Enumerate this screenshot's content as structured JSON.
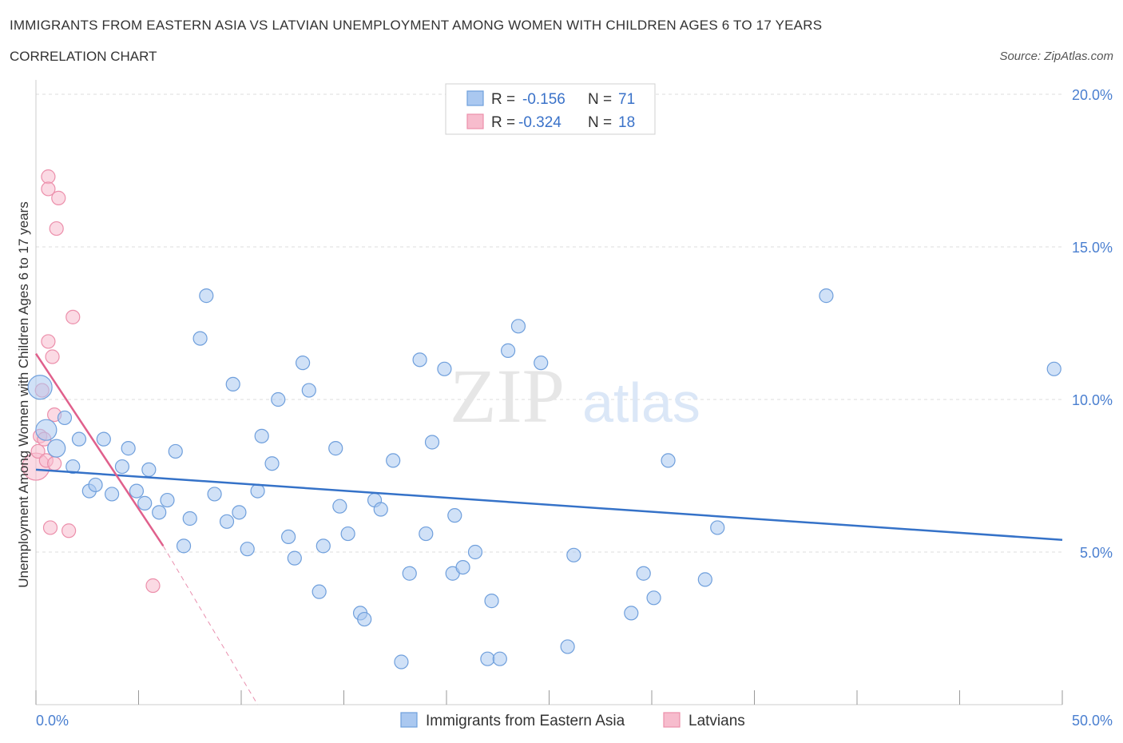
{
  "title": "IMMIGRANTS FROM EASTERN ASIA VS LATVIAN UNEMPLOYMENT AMONG WOMEN WITH CHILDREN AGES 6 TO 17 YEARS",
  "subtitle": "CORRELATION CHART",
  "source": "Source: ZipAtlas.com",
  "watermark": {
    "zip": "ZIP",
    "atlas": "atlas"
  },
  "legend": {
    "r_label": "R =",
    "n_label": "N =",
    "series1": {
      "r": "-0.156",
      "n": "71"
    },
    "series2": {
      "r": "-0.324",
      "n": "18"
    }
  },
  "colors": {
    "blue_fill": "#aac8f0",
    "blue_stroke": "#6f9fdc",
    "blue_line": "#3572c8",
    "pink_fill": "#f7bccd",
    "pink_stroke": "#ec8fab",
    "pink_line": "#e0608c",
    "grid": "#dcdcdc",
    "tick_label": "#4a7fd0"
  },
  "chart_data": {
    "type": "scatter",
    "ylabel": "Unemployment Among Women with Children Ages 6 to 17 years",
    "xlim": [
      0,
      50
    ],
    "ylim": [
      0,
      20
    ],
    "x_tick_labels": [
      "0.0%",
      "50.0%"
    ],
    "y_ticks": [
      5,
      10,
      15,
      20
    ],
    "y_tick_labels": [
      "5.0%",
      "10.0%",
      "15.0%",
      "20.0%"
    ],
    "grid": "horizontal dashed",
    "legend_placement": "top-center",
    "series": [
      {
        "name": "Immigrants from Eastern Asia",
        "color": "#aac8f0",
        "trend": {
          "x": [
            0,
            50
          ],
          "y": [
            7.7,
            5.4
          ]
        },
        "points": [
          [
            0.2,
            10.4
          ],
          [
            0.5,
            9.0
          ],
          [
            1.0,
            8.4
          ],
          [
            1.4,
            9.4
          ],
          [
            1.8,
            7.8
          ],
          [
            2.1,
            8.7
          ],
          [
            2.6,
            7.0
          ],
          [
            2.9,
            7.2
          ],
          [
            3.3,
            8.7
          ],
          [
            3.7,
            6.9
          ],
          [
            4.2,
            7.8
          ],
          [
            4.5,
            8.4
          ],
          [
            4.9,
            7.0
          ],
          [
            5.3,
            6.6
          ],
          [
            5.5,
            7.7
          ],
          [
            6.0,
            6.3
          ],
          [
            6.4,
            6.7
          ],
          [
            6.8,
            8.3
          ],
          [
            7.2,
            5.2
          ],
          [
            7.5,
            6.1
          ],
          [
            8.0,
            12.0
          ],
          [
            8.3,
            13.4
          ],
          [
            8.7,
            6.9
          ],
          [
            9.3,
            6.0
          ],
          [
            9.6,
            10.5
          ],
          [
            9.9,
            6.3
          ],
          [
            10.3,
            5.1
          ],
          [
            10.8,
            7.0
          ],
          [
            11.0,
            8.8
          ],
          [
            11.5,
            7.9
          ],
          [
            11.8,
            10.0
          ],
          [
            12.3,
            5.5
          ],
          [
            12.6,
            4.8
          ],
          [
            13.0,
            11.2
          ],
          [
            13.3,
            10.3
          ],
          [
            13.8,
            3.7
          ],
          [
            14.0,
            5.2
          ],
          [
            14.6,
            8.4
          ],
          [
            14.8,
            6.5
          ],
          [
            15.2,
            5.6
          ],
          [
            15.8,
            3.0
          ],
          [
            16.0,
            2.8
          ],
          [
            16.5,
            6.7
          ],
          [
            16.8,
            6.4
          ],
          [
            17.4,
            8.0
          ],
          [
            17.8,
            1.4
          ],
          [
            18.2,
            4.3
          ],
          [
            18.7,
            11.3
          ],
          [
            19.0,
            5.6
          ],
          [
            19.3,
            8.6
          ],
          [
            19.9,
            11.0
          ],
          [
            20.3,
            4.3
          ],
          [
            20.4,
            6.2
          ],
          [
            20.8,
            4.5
          ],
          [
            21.4,
            5.0
          ],
          [
            22.0,
            1.5
          ],
          [
            22.2,
            3.4
          ],
          [
            22.6,
            1.5
          ],
          [
            23.0,
            11.6
          ],
          [
            23.5,
            12.4
          ],
          [
            24.6,
            11.2
          ],
          [
            25.9,
            1.9
          ],
          [
            26.2,
            4.9
          ],
          [
            29.0,
            3.0
          ],
          [
            29.6,
            4.3
          ],
          [
            30.1,
            3.5
          ],
          [
            30.8,
            8.0
          ],
          [
            32.6,
            4.1
          ],
          [
            33.2,
            5.8
          ],
          [
            38.5,
            13.4
          ],
          [
            49.6,
            11.0
          ]
        ]
      },
      {
        "name": "Latvians",
        "color": "#f7bccd",
        "trend": {
          "x": [
            0,
            6.2
          ],
          "y": [
            11.5,
            5.2
          ]
        },
        "trend_extension": {
          "x": [
            6.2,
            10.8
          ],
          "y": [
            5.2,
            0
          ]
        },
        "points": [
          [
            0.0,
            7.8
          ],
          [
            0.1,
            8.3
          ],
          [
            0.2,
            8.8
          ],
          [
            0.3,
            10.3
          ],
          [
            0.5,
            8.0
          ],
          [
            0.6,
            17.3
          ],
          [
            0.6,
            16.9
          ],
          [
            0.6,
            11.9
          ],
          [
            0.7,
            5.8
          ],
          [
            0.8,
            11.4
          ],
          [
            0.9,
            9.5
          ],
          [
            0.9,
            7.9
          ],
          [
            1.0,
            15.6
          ],
          [
            1.1,
            16.6
          ],
          [
            1.6,
            5.7
          ],
          [
            1.8,
            12.7
          ],
          [
            5.7,
            3.9
          ],
          [
            0.4,
            8.7
          ]
        ]
      }
    ]
  },
  "bottom_legend": {
    "item1": "Immigrants from Eastern Asia",
    "item2": "Latvians"
  }
}
